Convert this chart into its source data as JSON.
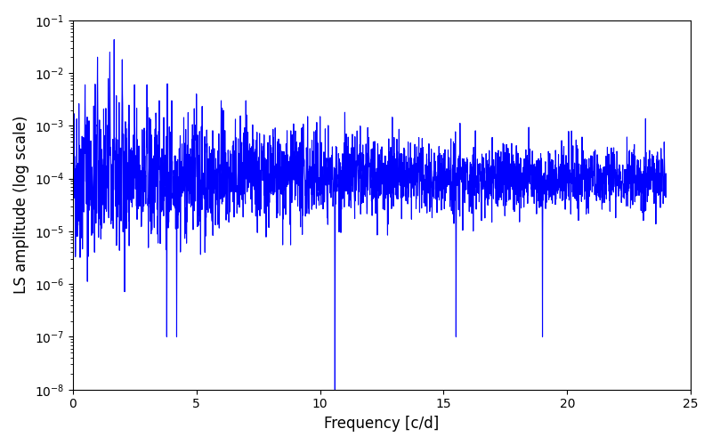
{
  "title": "",
  "xlabel": "Frequency [c/d]",
  "ylabel": "LS amplitude (log scale)",
  "xlim": [
    0,
    25
  ],
  "ylim": [
    1e-08,
    0.1
  ],
  "line_color": "#0000FF",
  "line_width": 0.8,
  "background_color": "#ffffff",
  "yscale": "log",
  "figsize": [
    8.0,
    5.0
  ],
  "dpi": 100,
  "seed": 42,
  "n_points": 3000,
  "freq_max": 24.0
}
